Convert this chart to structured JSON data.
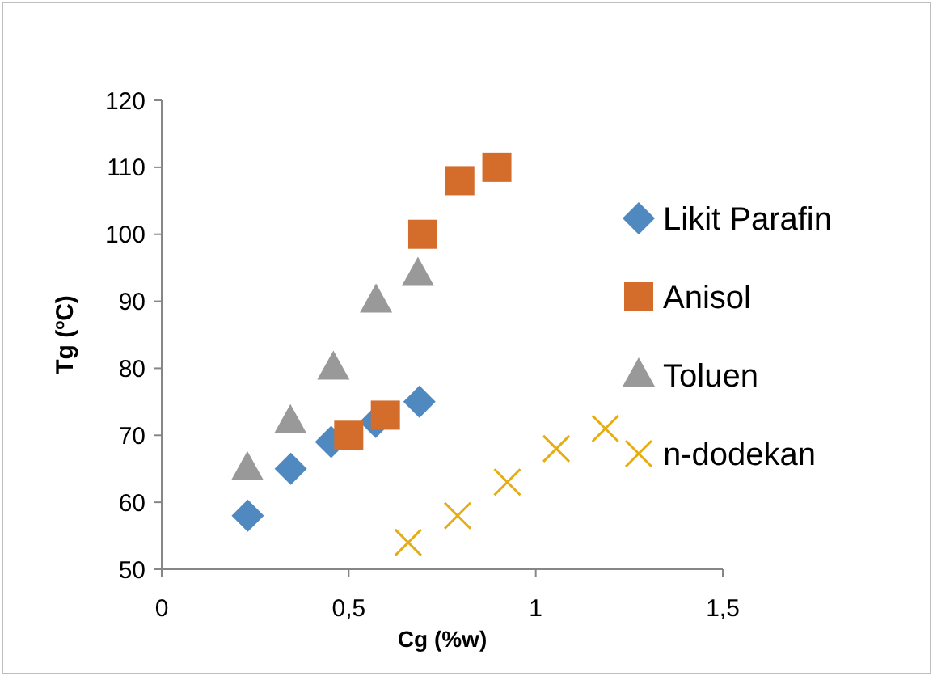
{
  "chart_data": {
    "type": "scatter",
    "xlabel": "Cg (%w)",
    "ylabel": "Tg (ºC)",
    "xlim": [
      0,
      1.5
    ],
    "ylim": [
      50,
      120
    ],
    "xticks": [
      0,
      {
        "value": 0.5,
        "label": "0,5"
      },
      1,
      {
        "value": 1.5,
        "label": "1,5"
      }
    ],
    "yticks": [
      50,
      60,
      70,
      80,
      90,
      100,
      110,
      120
    ],
    "grid": false,
    "legend": "right",
    "series": [
      {
        "name": "Likit Parafin",
        "color": "#4f89c0",
        "marker": "diamond",
        "x": [
          0.23,
          0.345,
          0.453,
          0.572,
          0.689
        ],
        "values": [
          58,
          65,
          69,
          72,
          75
        ]
      },
      {
        "name": "Anisol",
        "color": "#d46c2b",
        "marker": "square",
        "x": [
          0.5,
          0.598,
          0.698,
          0.797,
          0.896
        ],
        "values": [
          70,
          73,
          100,
          108,
          110
        ]
      },
      {
        "name": "Toluen",
        "color": "#999999",
        "marker": "triangle",
        "x": [
          0.229,
          0.344,
          0.459,
          0.573,
          0.685
        ],
        "values": [
          65,
          72,
          80,
          90,
          94
        ]
      },
      {
        "name": "n-dodekan",
        "color": "#e6ad12",
        "marker": "cross",
        "x": [
          0.659,
          0.791,
          0.924,
          1.055,
          1.186
        ],
        "values": [
          54,
          58,
          63,
          68,
          71
        ]
      }
    ]
  }
}
